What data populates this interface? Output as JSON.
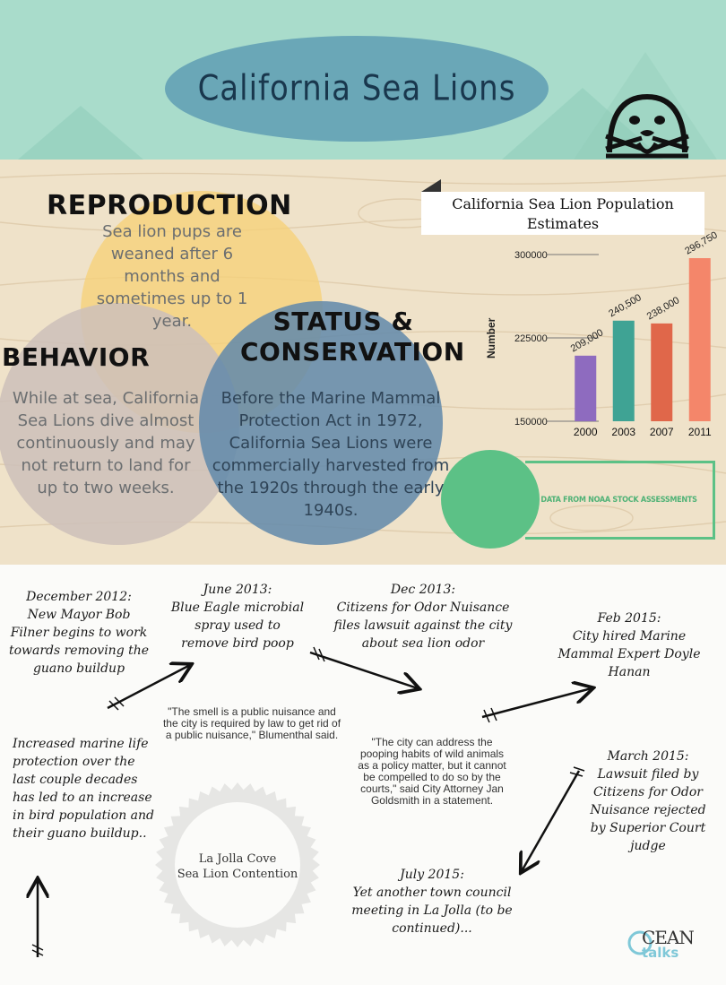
{
  "header": {
    "title": "California Sea Lions",
    "icon": "sea-lion-face-icon",
    "background_color": "#a9dccb",
    "oval_color": "#6aa7b7"
  },
  "sections": {
    "reproduction": {
      "heading": "REPRODUCTION",
      "text": "Sea lion pups are weaned after 6 months and sometimes up to 1 year.",
      "color": "#f6d178"
    },
    "behavior": {
      "heading": "BEHAVIOR",
      "text": "While at sea, California Sea Lions dive almost continuously and may not return to land for up to two weeks.",
      "color": "#cdc0ba"
    },
    "status": {
      "heading": "STATUS & CONSERVATION",
      "text": "Before the Marine Mammal Protection Act in 1972, California Sea Lions were commercially harvested from the 1920s through the early 1940s.",
      "color": "#6088aa"
    }
  },
  "chart_data": {
    "type": "bar",
    "title": "California Sea Lion Population Estimates",
    "xlabel": "",
    "ylabel": "Number",
    "categories": [
      "2000",
      "2003",
      "2007",
      "2011"
    ],
    "values": [
      209000,
      240500,
      238000,
      296750
    ],
    "data_labels": [
      "209,000",
      "240,500",
      "238,000",
      "296,750"
    ],
    "bar_colors": [
      "#8e6bbf",
      "#3fa394",
      "#e0674a",
      "#f4866a"
    ],
    "ylim": [
      150000,
      300000
    ],
    "yticks": [
      150000,
      225000,
      300000
    ],
    "grid": false,
    "legend": "none"
  },
  "source_note": "DATA FROM NOAA STOCK ASSESSMENTS",
  "timeline": {
    "dec2012": "December 2012:\nNew Mayor Bob Filner begins to work towards removing the guano buildup",
    "jun2013": "June 2013:\nBlue Eagle microbial spray used to remove bird poop",
    "dec2013": "Dec 2013:\nCitizens for Odor Nuisance files lawsuit against the city about sea lion odor",
    "feb2015": "Feb 2015:\nCity hired Marine Mammal Expert Doyle Hanan",
    "increased": "Increased marine life protection over the last couple decades has led to an increase in bird population and their guano buildup..",
    "mar2015": "March 2015:\nLawsuit filed by Citizens for Odor Nuisance rejected by Superior Court judge",
    "jul2015": "July 2015:\nYet another town council meeting in La Jolla (to be continued)..."
  },
  "quotes": {
    "smell": "\"The smell is a public nuisance and the city is required by law to get rid of a public nuisance,\" Blumenthal said.",
    "city": "\"The city can address the pooping habits of wild animals as a policy matter, but it cannot be compelled to do so by the courts,\" said City Attorney Jan Goldsmith in a statement."
  },
  "stamp": {
    "line1": "La Jolla Cove",
    "line2": "Sea Lion Contention"
  },
  "logo": {
    "main": "CEAN",
    "sub": "talks"
  }
}
